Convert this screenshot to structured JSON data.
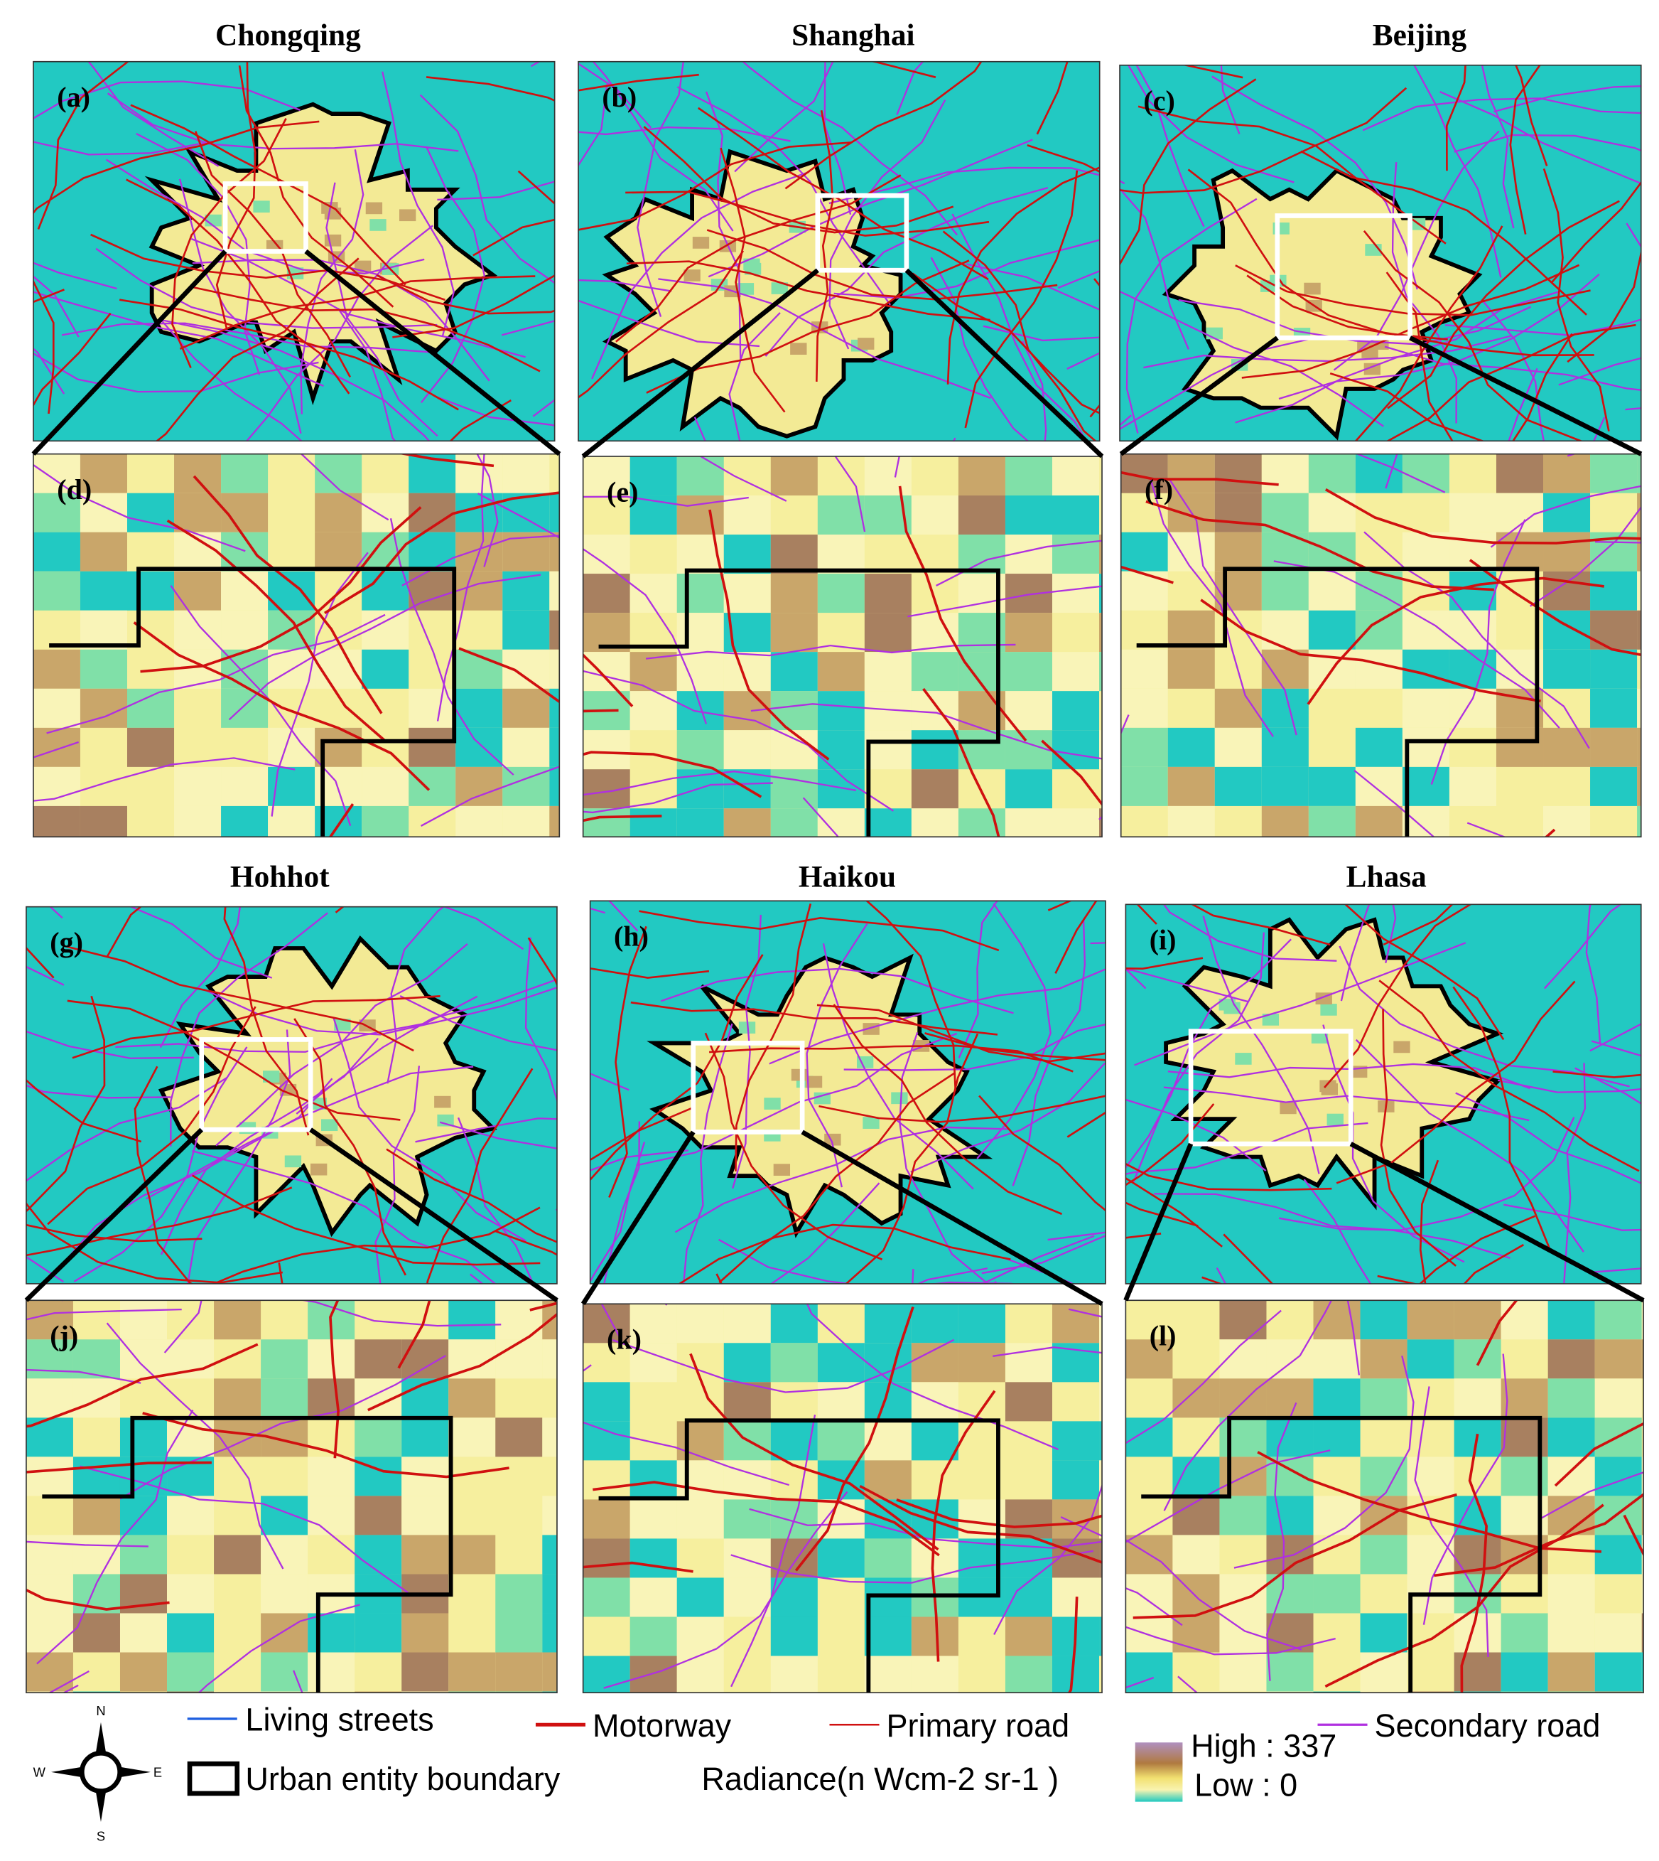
{
  "titles": [
    "Chongqing",
    "Shanghai",
    "Beijing",
    "Hohhot",
    "Haikou",
    "Lhasa"
  ],
  "panels": [
    "(a)",
    "(b)",
    "(c)",
    "(d)",
    "(e)",
    "(f)",
    "(g)",
    "(h)",
    "(i)",
    "(j)",
    "(k)",
    "(l)"
  ],
  "legend": {
    "living_streets": "Living streets",
    "motorway": "Motorway",
    "primary_road": "Primary road",
    "secondary_road": "Secondary road",
    "boundary": "Urban entity boundary",
    "radiance": "Radiance(n Wcm-2 sr-1 )",
    "high": "High : 337",
    "low": "Low : 0"
  },
  "compass": {
    "n": "N",
    "s": "S",
    "w": "W",
    "e": "E"
  }
}
